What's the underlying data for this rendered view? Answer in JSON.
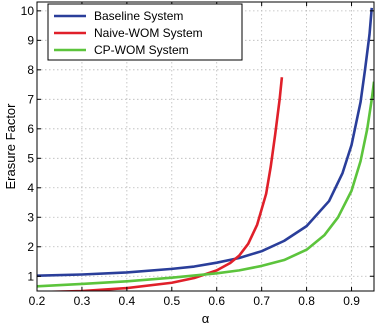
{
  "chart_data": {
    "type": "line",
    "title": "",
    "xlabel": "α",
    "ylabel": "Erasure Factor",
    "xlim": [
      0.2,
      0.95
    ],
    "ylim": [
      0.5,
      10.3
    ],
    "x_ticks": [
      0.2,
      0.3,
      0.4,
      0.5,
      0.6,
      0.7,
      0.8,
      0.9
    ],
    "y_ticks": [
      1,
      2,
      3,
      4,
      5,
      6,
      7,
      8,
      9,
      10
    ],
    "x_tick_labels": [
      "0.2",
      "0.3",
      "0.4",
      "0.5",
      "0.6",
      "0.7",
      "0.8",
      "0.9"
    ],
    "y_tick_labels": [
      "1",
      "2",
      "3",
      "4",
      "5",
      "6",
      "7",
      "8",
      "9",
      "10"
    ],
    "grid": true,
    "grid_style": "dotted",
    "legend_position": "top-left",
    "series": [
      {
        "name": "Baseline System",
        "color": "#2a3e9a",
        "points": [
          [
            0.2,
            1.02
          ],
          [
            0.3,
            1.06
          ],
          [
            0.4,
            1.13
          ],
          [
            0.5,
            1.25
          ],
          [
            0.55,
            1.33
          ],
          [
            0.6,
            1.46
          ],
          [
            0.65,
            1.62
          ],
          [
            0.7,
            1.85
          ],
          [
            0.75,
            2.2
          ],
          [
            0.8,
            2.7
          ],
          [
            0.85,
            3.55
          ],
          [
            0.88,
            4.5
          ],
          [
            0.9,
            5.45
          ],
          [
            0.92,
            6.9
          ],
          [
            0.93,
            8.0
          ],
          [
            0.94,
            9.2
          ],
          [
            0.945,
            10.1
          ]
        ]
      },
      {
        "name": "Naive-WOM System",
        "color": "#e0202a",
        "points": [
          [
            0.2,
            0.46
          ],
          [
            0.3,
            0.5
          ],
          [
            0.4,
            0.6
          ],
          [
            0.5,
            0.78
          ],
          [
            0.55,
            0.94
          ],
          [
            0.6,
            1.2
          ],
          [
            0.63,
            1.45
          ],
          [
            0.65,
            1.7
          ],
          [
            0.67,
            2.1
          ],
          [
            0.69,
            2.75
          ],
          [
            0.71,
            3.8
          ],
          [
            0.72,
            4.7
          ],
          [
            0.73,
            5.8
          ],
          [
            0.74,
            7.0
          ],
          [
            0.745,
            7.75
          ]
        ]
      },
      {
        "name": "CP-WOM System",
        "color": "#5cc43c",
        "points": [
          [
            0.2,
            0.66
          ],
          [
            0.3,
            0.74
          ],
          [
            0.4,
            0.83
          ],
          [
            0.5,
            0.95
          ],
          [
            0.6,
            1.1
          ],
          [
            0.65,
            1.2
          ],
          [
            0.7,
            1.35
          ],
          [
            0.75,
            1.55
          ],
          [
            0.8,
            1.9
          ],
          [
            0.84,
            2.4
          ],
          [
            0.87,
            3.0
          ],
          [
            0.9,
            3.9
          ],
          [
            0.92,
            4.9
          ],
          [
            0.935,
            6.0
          ],
          [
            0.945,
            7.0
          ],
          [
            0.95,
            7.6
          ]
        ]
      }
    ]
  }
}
